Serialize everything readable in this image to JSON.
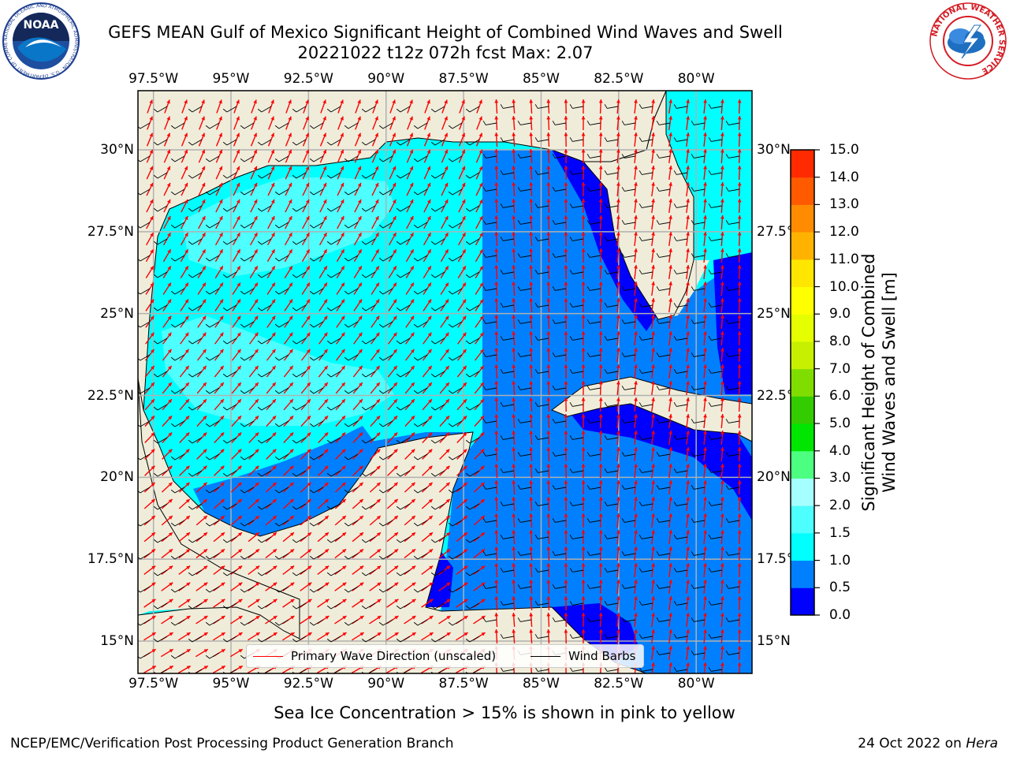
{
  "header": {
    "title_line1": "GEFS MEAN Gulf of Mexico Significant Height of Combined Wind Waves and Swell",
    "title_line2": "20221022 t12z 072h fcst   Max: 2.07"
  },
  "logos": {
    "left": {
      "text": "NOAA",
      "ring_text": "NATIONAL OCEANIC AND ATMOSPHERIC ADMINISTRATION · U.S. DEPARTMENT OF COMMERCE"
    },
    "right": {
      "ring_text": "NATIONAL WEATHER SERVICE"
    }
  },
  "map": {
    "lon_ticks": [
      "97.5°W",
      "95°W",
      "92.5°W",
      "90°W",
      "87.5°W",
      "85°W",
      "82.5°W",
      "80°W"
    ],
    "lat_ticks": [
      "30°N",
      "27.5°N",
      "25°N",
      "22.5°N",
      "20°N",
      "17.5°N",
      "15°N"
    ],
    "lon_values": [
      -97.5,
      -95,
      -92.5,
      -90,
      -87.5,
      -85,
      -82.5,
      -80
    ],
    "lat_values": [
      30,
      27.5,
      25,
      22.5,
      20,
      17.5,
      15
    ],
    "extent": {
      "lon": [
        -98,
        -78.2
      ],
      "lat": [
        14,
        31.8
      ]
    },
    "colors": {
      "land": "#efedda",
      "coast": "#000000",
      "grid": "#b0b0b0",
      "wave_dir": "#ff0000",
      "wind_barb": "#000000"
    }
  },
  "legend": {
    "primary_wave": "Primary Wave Direction (unscaled)",
    "wind_barbs": "Wind Barbs"
  },
  "colorbar": {
    "label_line1": "Significant Height of Combined",
    "label_line2": "Wind Waves and Swell [m]",
    "ticks": [
      "15.0",
      "14.0",
      "13.0",
      "12.0",
      "11.0",
      "10.0",
      "9.0",
      "8.0",
      "7.0",
      "6.0",
      "5.0",
      "4.0",
      "3.0",
      "2.0",
      "1.5",
      "1.0",
      "0.5",
      "0.0"
    ],
    "colors": [
      "#0000ff",
      "#0080ff",
      "#00ffff",
      "#4dffff",
      "#a6ffff",
      "#4dff80",
      "#00e600",
      "#33cc00",
      "#80dd00",
      "#c6f000",
      "#e6ff00",
      "#ffff00",
      "#ffe600",
      "#ffb300",
      "#ff8c00",
      "#ff5a00",
      "#ff2a00"
    ]
  },
  "note": "Sea Ice Concentration > 15% is shown in pink to yellow",
  "footer": {
    "left": "NCEP/EMC/Verification Post Processing Product Generation Branch",
    "right_prefix": "24 Oct 2022 on",
    "right_host": "Hera"
  }
}
